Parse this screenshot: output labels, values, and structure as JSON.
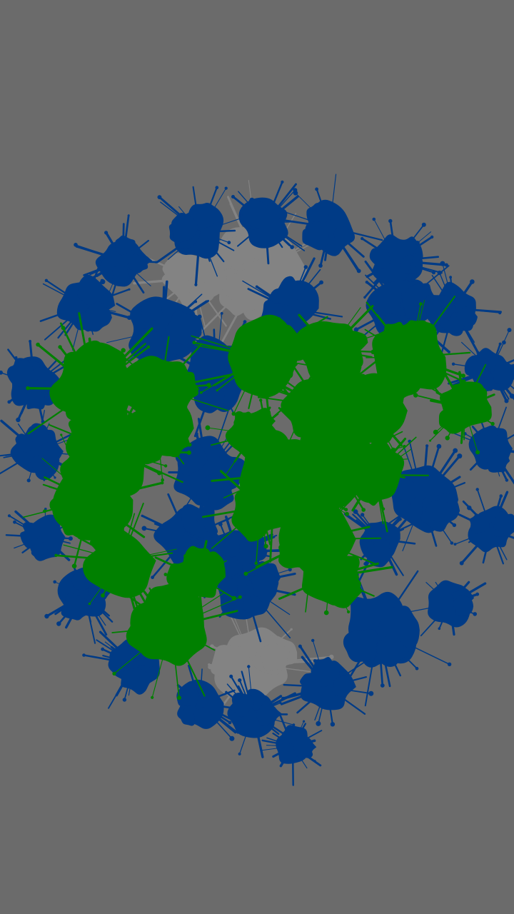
{
  "game": {
    "background_color": "#6b6b6b",
    "team_colors": {
      "blue": "#003b86",
      "green": "#008000",
      "neutral": "#838383"
    },
    "splats": [
      {
        "color": "neutral"
      },
      {
        "color": "neutral"
      },
      {
        "color": "neutral"
      },
      {
        "color": "blue"
      },
      {
        "color": "blue"
      },
      {
        "color": "blue"
      },
      {
        "color": "blue"
      },
      {
        "color": "blue"
      },
      {
        "color": "blue"
      },
      {
        "color": "blue"
      },
      {
        "color": "blue"
      },
      {
        "color": "blue"
      },
      {
        "color": "blue"
      },
      {
        "color": "blue"
      },
      {
        "color": "blue"
      },
      {
        "color": "blue"
      },
      {
        "color": "blue"
      },
      {
        "color": "blue"
      },
      {
        "color": "blue"
      },
      {
        "color": "blue"
      },
      {
        "color": "blue"
      },
      {
        "color": "blue"
      },
      {
        "color": "blue"
      },
      {
        "color": "blue"
      },
      {
        "color": "blue"
      },
      {
        "color": "blue"
      },
      {
        "color": "blue"
      },
      {
        "color": "blue"
      },
      {
        "color": "blue"
      },
      {
        "color": "blue"
      },
      {
        "color": "blue"
      },
      {
        "color": "blue"
      },
      {
        "color": "blue"
      },
      {
        "color": "blue"
      },
      {
        "color": "green"
      },
      {
        "color": "green"
      },
      {
        "color": "green"
      },
      {
        "color": "green"
      },
      {
        "color": "green"
      },
      {
        "color": "green"
      },
      {
        "color": "green"
      },
      {
        "color": "green"
      },
      {
        "color": "green"
      },
      {
        "color": "green"
      },
      {
        "color": "green"
      },
      {
        "color": "green"
      },
      {
        "color": "green"
      },
      {
        "color": "green"
      },
      {
        "color": "green"
      },
      {
        "color": "green"
      },
      {
        "color": "green"
      },
      {
        "color": "green"
      },
      {
        "color": "green"
      },
      {
        "color": "green"
      },
      {
        "color": "green"
      }
    ]
  }
}
